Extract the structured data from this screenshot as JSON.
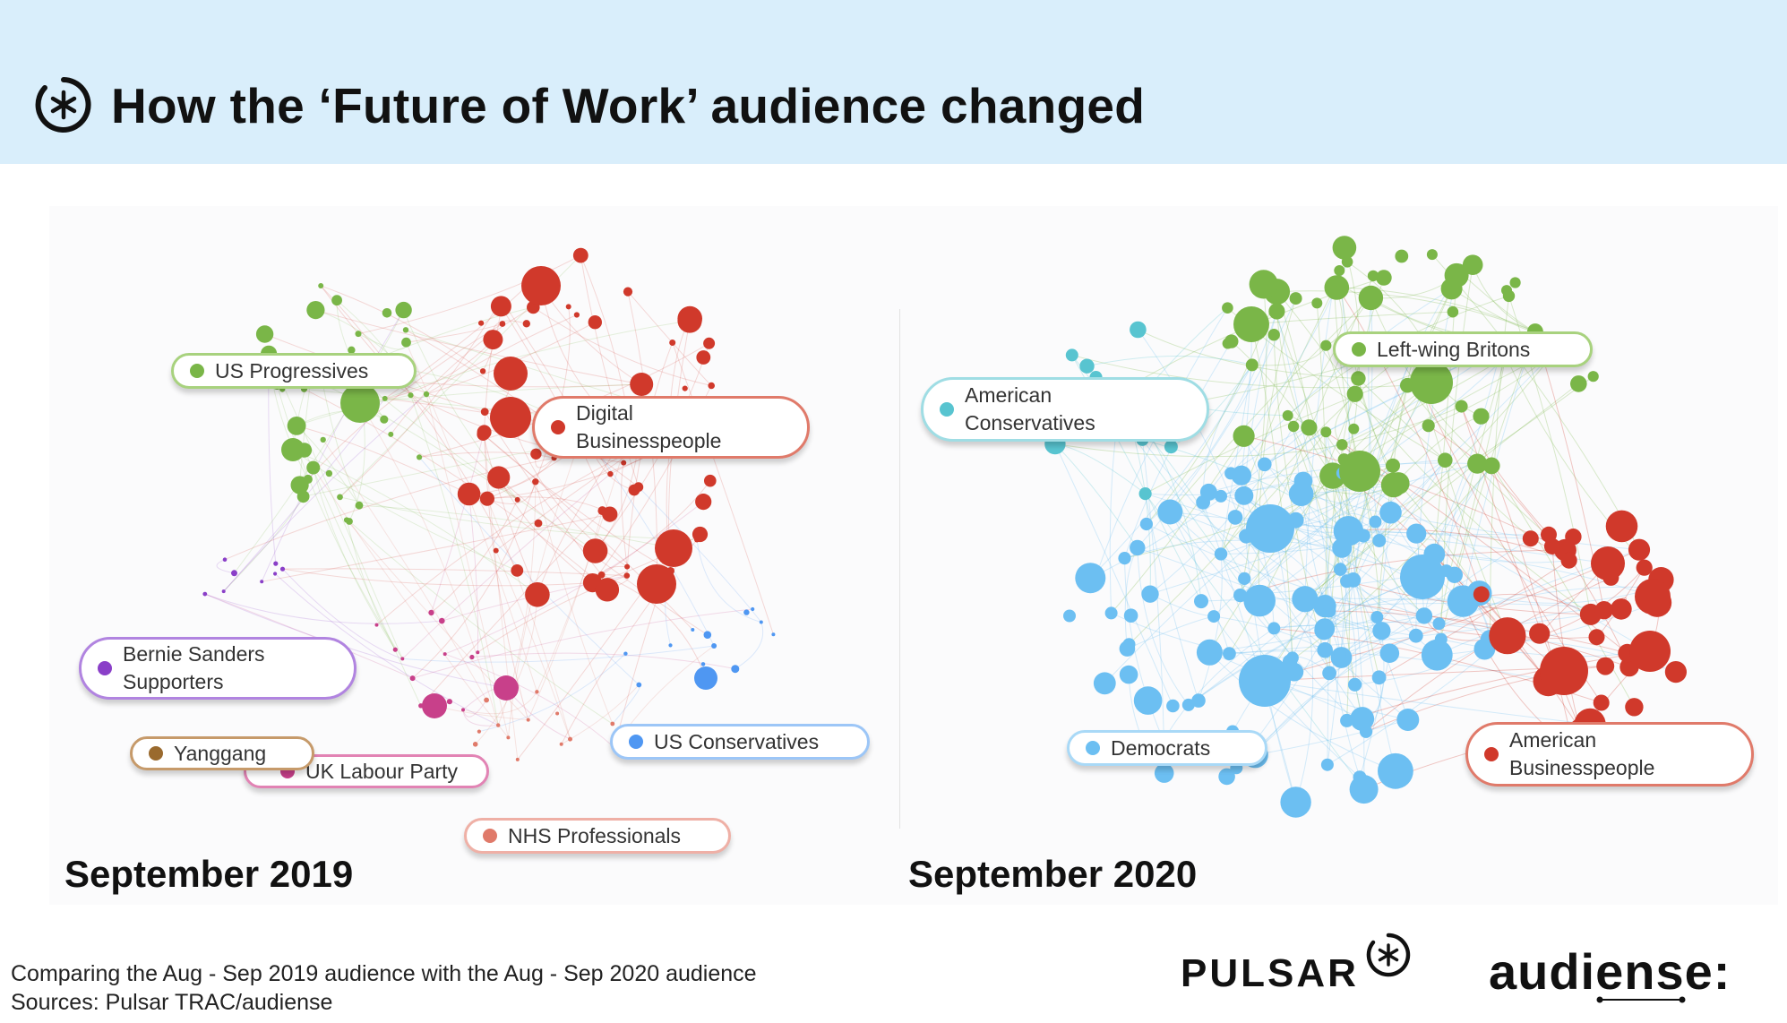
{
  "header": {
    "title": "How the ‘Future of Work’ audience changed",
    "icon": "asterisk-circle-icon",
    "background": "#d9eefb"
  },
  "panels": [
    {
      "year_label": "September 2019",
      "clusters": [
        {
          "label": "US Progressives",
          "color": "#7ab648"
        },
        {
          "label": "Digital\nBusinesspeople",
          "color": "#d0392b"
        },
        {
          "label": "Bernie Sanders\nSupporters",
          "color": "#8a3fc8"
        },
        {
          "label": "Yanggang",
          "color": "#9a6a2e"
        },
        {
          "label": "UK Labour Party",
          "color": "#c8408a"
        },
        {
          "label": "US Conservatives",
          "color": "#4f97f2"
        },
        {
          "label": "NHS Professionals",
          "color": "#e07a6a"
        }
      ]
    },
    {
      "year_label": "September 2020",
      "clusters": [
        {
          "label": "American\nConservatives",
          "color": "#58c4d0"
        },
        {
          "label": "Left-wing Britons",
          "color": "#7ab648"
        },
        {
          "label": "Democrats",
          "color": "#6cbff2"
        },
        {
          "label": "American\nBusinesspeople",
          "color": "#d0392b"
        }
      ]
    }
  ],
  "footer": {
    "line1": "Comparing the Aug - Sep 2019 audience with the Aug - Sep 2020 audience",
    "line2": "Sources: Pulsar TRAC/audiense"
  },
  "logos": {
    "pulsar": "PULSAR",
    "audiense": "audiense:"
  }
}
